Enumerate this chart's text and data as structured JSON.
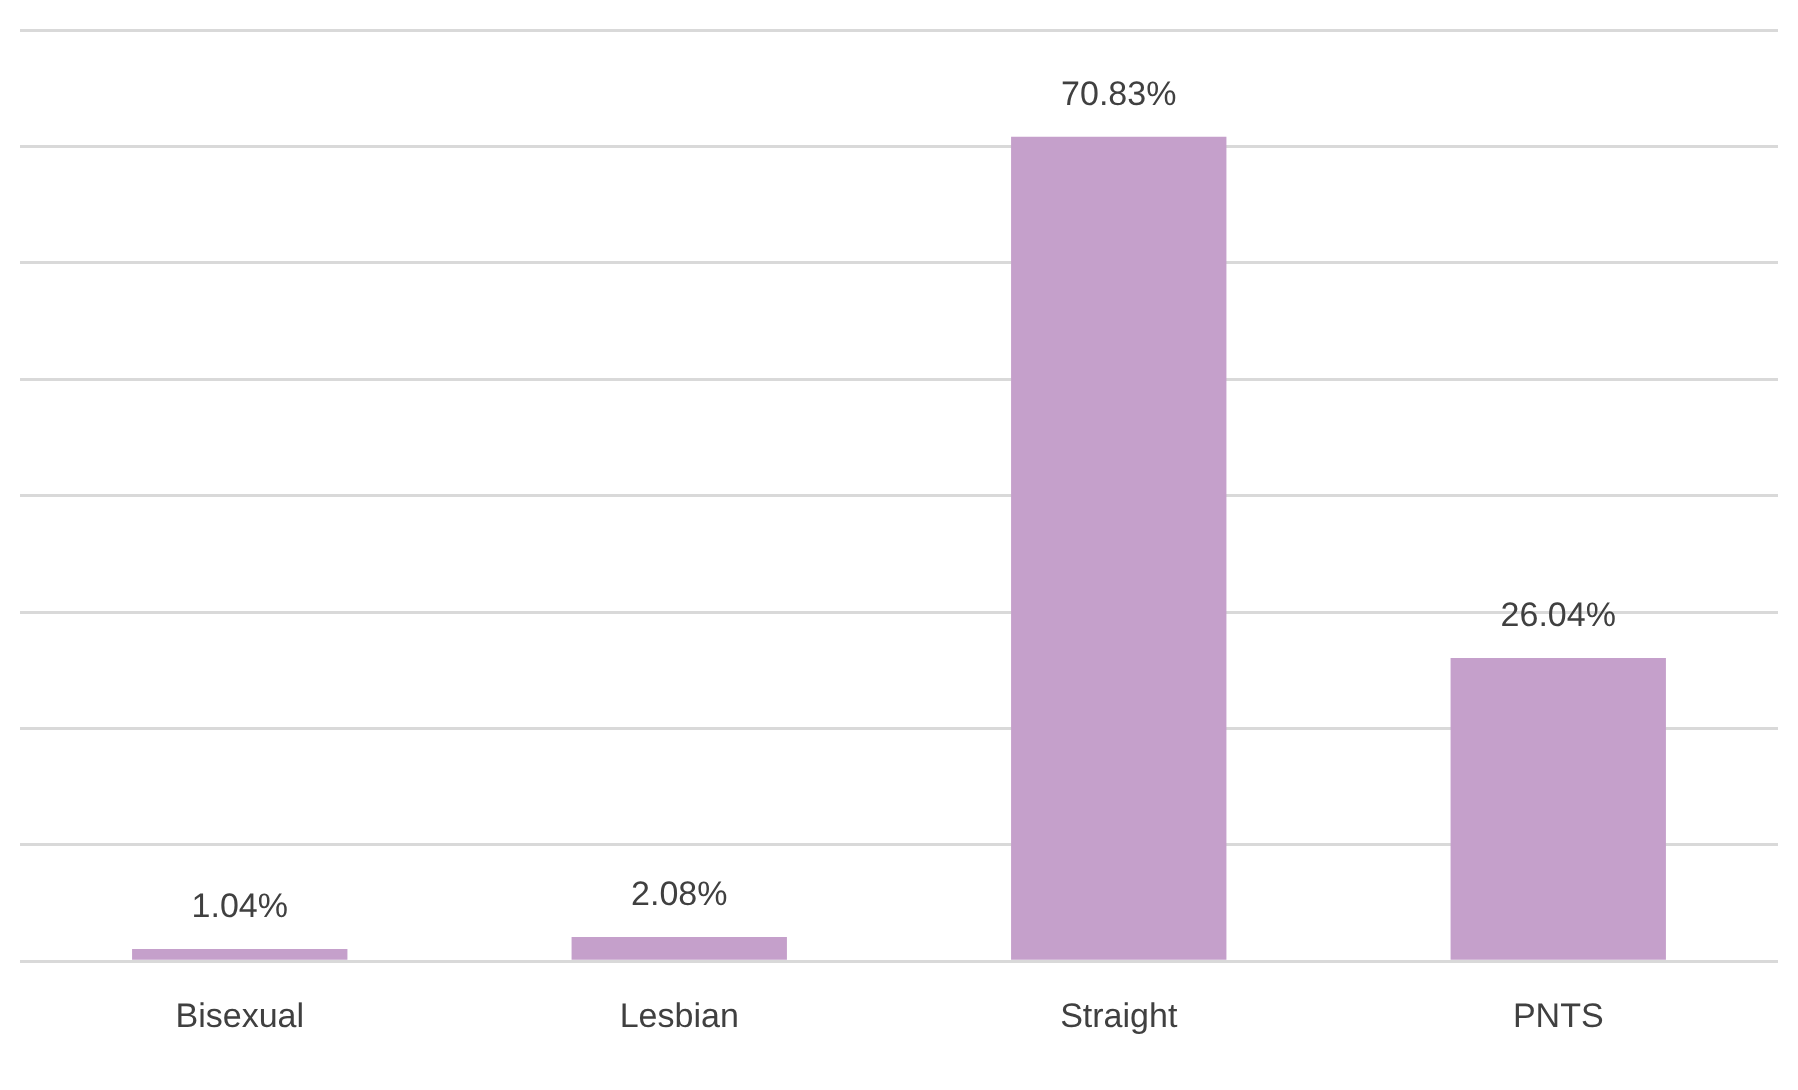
{
  "chart_data": {
    "type": "bar",
    "categories": [
      "Bisexual",
      "Lesbian",
      "Straight",
      "PNTS"
    ],
    "values": [
      1.04,
      2.08,
      70.83,
      26.04
    ],
    "color": "#c5a0cb",
    "value_labels": [
      "1.04%",
      "2.08%",
      "70.83%",
      "26.04%"
    ],
    "ylim": [
      0,
      80
    ],
    "yticks": [
      {
        "value": 0,
        "label": null
      },
      {
        "value": 10,
        "label": null
      },
      {
        "value": 20,
        "label": null
      },
      {
        "value": 30,
        "label": null
      },
      {
        "value": 40,
        "label": null
      },
      {
        "value": 50,
        "label": null
      },
      {
        "value": 60,
        "label": null
      },
      {
        "value": 70,
        "label": null
      },
      {
        "value": 80,
        "label": null
      }
    ],
    "grid": "y",
    "tick_labels": "x",
    "legend": false
  }
}
